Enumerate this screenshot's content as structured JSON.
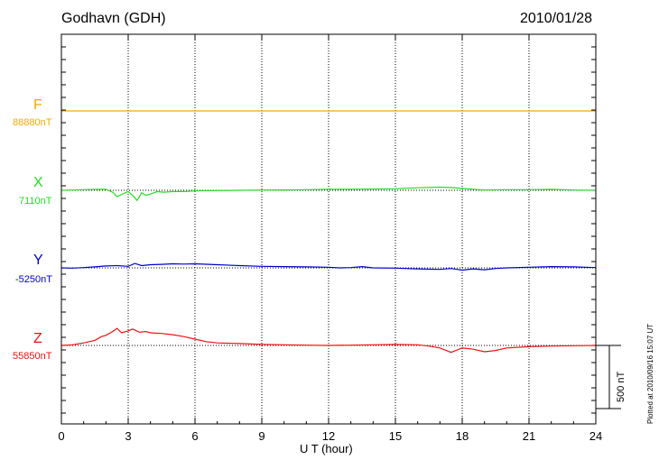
{
  "header": {
    "station": "Godhavn (GDH)",
    "date": "2010/01/28"
  },
  "footer_note": "Plotted at 2010/09/16 15:07 UT",
  "chart_data": {
    "type": "line",
    "xlabel": "U T (hour)",
    "xlim": [
      0,
      24
    ],
    "xticks": [
      0,
      3,
      6,
      9,
      12,
      15,
      18,
      21,
      24
    ],
    "scale_bar_label": "500 nT",
    "scale_bar_nT": 500,
    "grid": true,
    "series": [
      {
        "name": "F",
        "baseline_label": "88880nT",
        "baseline": 88880,
        "color": "#f2a900",
        "x": [
          0,
          2,
          4,
          6,
          8,
          10,
          12,
          14,
          16,
          18,
          20,
          22,
          24
        ],
        "y": [
          88880,
          88880,
          88880,
          88880,
          88880,
          88880,
          88880,
          88880,
          88880,
          88880,
          88880,
          88880,
          88880
        ]
      },
      {
        "name": "X",
        "baseline_label": "7110nT",
        "baseline": 7110,
        "color": "#22dd22",
        "x": [
          0,
          0.5,
          1.0,
          1.5,
          2.0,
          2.3,
          2.5,
          2.8,
          3.0,
          3.2,
          3.4,
          3.6,
          3.8,
          4.0,
          4.3,
          4.6,
          5.0,
          5.5,
          6,
          7,
          8,
          9,
          10,
          11,
          12,
          13,
          14,
          15,
          16,
          17,
          17.5,
          18,
          18.5,
          19,
          20,
          21,
          22,
          23,
          24
        ],
        "y": [
          7110,
          7112,
          7115,
          7118,
          7118,
          7095,
          7060,
          7085,
          7100,
          7070,
          7030,
          7090,
          7070,
          7080,
          7100,
          7095,
          7100,
          7100,
          7105,
          7108,
          7110,
          7112,
          7113,
          7115,
          7118,
          7118,
          7120,
          7122,
          7130,
          7135,
          7132,
          7125,
          7118,
          7112,
          7115,
          7115,
          7118,
          7112,
          7110
        ]
      },
      {
        "name": "Y",
        "baseline_label": "-5250nT",
        "baseline": -5250,
        "color": "#0000cc",
        "x": [
          0,
          0.5,
          1.0,
          1.5,
          2.0,
          2.5,
          3.0,
          3.3,
          3.6,
          4.0,
          4.5,
          5.0,
          5.5,
          6,
          7,
          8,
          9,
          10,
          11,
          12,
          12.5,
          13,
          13.5,
          14,
          15,
          16,
          17,
          17.5,
          18,
          18.5,
          19,
          19.5,
          20,
          21,
          22,
          23,
          24
        ],
        "y": [
          -5250,
          -5252,
          -5248,
          -5242,
          -5235,
          -5232,
          -5238,
          -5215,
          -5232,
          -5225,
          -5222,
          -5218,
          -5220,
          -5218,
          -5225,
          -5232,
          -5238,
          -5240,
          -5242,
          -5245,
          -5250,
          -5248,
          -5240,
          -5250,
          -5252,
          -5258,
          -5262,
          -5255,
          -5268,
          -5258,
          -5265,
          -5255,
          -5250,
          -5245,
          -5240,
          -5242,
          -5248
        ]
      },
      {
        "name": "Z",
        "baseline_label": "55850nT",
        "baseline": 55850,
        "color": "#ee1111",
        "x": [
          0,
          0.5,
          1.0,
          1.5,
          1.8,
          2.0,
          2.3,
          2.5,
          2.7,
          3.0,
          3.2,
          3.5,
          3.8,
          4.0,
          4.5,
          5.0,
          5.5,
          6.0,
          6.5,
          7.0,
          8.0,
          9.0,
          10,
          11,
          12,
          13,
          14,
          15,
          16,
          16.5,
          17,
          17.5,
          18,
          18.5,
          19,
          19.5,
          20,
          21,
          22,
          23,
          24
        ],
        "y": [
          55850,
          55855,
          55870,
          55890,
          55920,
          55930,
          55960,
          55985,
          55950,
          55965,
          55980,
          55955,
          55960,
          55950,
          55945,
          55935,
          55920,
          55900,
          55880,
          55870,
          55865,
          55858,
          55855,
          55852,
          55850,
          55852,
          55855,
          55858,
          55855,
          55845,
          55830,
          55795,
          55830,
          55820,
          55800,
          55810,
          55830,
          55840,
          55845,
          55848,
          55850
        ]
      }
    ]
  }
}
